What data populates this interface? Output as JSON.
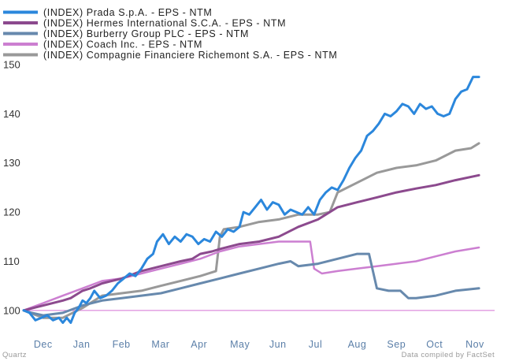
{
  "chart_data": {
    "type": "line",
    "title": "",
    "xlabel": "",
    "ylabel": "",
    "ylim": [
      95,
      150
    ],
    "yticks": [
      100,
      110,
      120,
      130,
      140,
      150
    ],
    "baseline": 100,
    "baseline_color": "#d470d4",
    "xlim": [
      0,
      12
    ],
    "x_tick_labels": [
      "Dec",
      "Jan",
      "Feb",
      "Mar",
      "Apr",
      "May",
      "Jun",
      "Jul",
      "Aug",
      "Sep",
      "Oct",
      "Nov"
    ],
    "legend_position": "top-left",
    "series": [
      {
        "name": "(INDEX) Prada S.p.A. - EPS - NTM",
        "color": "#2b87dc",
        "width": 3,
        "x": [
          0,
          0.15,
          0.3,
          0.45,
          0.6,
          0.75,
          0.9,
          1.0,
          1.1,
          1.2,
          1.3,
          1.4,
          1.5,
          1.6,
          1.7,
          1.8,
          1.95,
          2.1,
          2.25,
          2.4,
          2.55,
          2.7,
          2.85,
          3.0,
          3.15,
          3.3,
          3.4,
          3.55,
          3.7,
          3.85,
          4.0,
          4.15,
          4.3,
          4.45,
          4.6,
          4.75,
          4.9,
          5.05,
          5.2,
          5.35,
          5.5,
          5.6,
          5.75,
          5.9,
          6.05,
          6.2,
          6.35,
          6.5,
          6.65,
          6.8,
          6.95,
          7.1,
          7.25,
          7.4,
          7.55,
          7.7,
          7.85,
          8.0,
          8.15,
          8.3,
          8.45,
          8.6,
          8.75,
          8.9,
          9.05,
          9.2,
          9.35,
          9.5,
          9.65,
          9.8,
          9.95,
          10.1,
          10.25,
          10.4,
          10.55,
          10.7,
          10.85,
          11.0,
          11.15,
          11.3,
          11.45,
          11.6
        ],
        "values": [
          100,
          99.5,
          98,
          98.5,
          99,
          98,
          98.5,
          97.5,
          98.5,
          97.5,
          99.5,
          100.5,
          102,
          101.5,
          102.5,
          104,
          102.5,
          103,
          104,
          105.5,
          106.5,
          107.5,
          107,
          108.5,
          110.5,
          111.5,
          114,
          115.5,
          113.5,
          115,
          114,
          115.5,
          115,
          113.5,
          114.5,
          114,
          116,
          115,
          116.5,
          116,
          117,
          120,
          119.5,
          121,
          122.5,
          120.5,
          122,
          121.5,
          119.5,
          120.5,
          120,
          119.5,
          121,
          119.5,
          122.5,
          124,
          125,
          124.5,
          126.5,
          129,
          131,
          132.5,
          135.5,
          136.5,
          138,
          140,
          139.5,
          140.5,
          142,
          141.5,
          140,
          142,
          141,
          141.5,
          140,
          139.5,
          140,
          143,
          144.5,
          145,
          147.5,
          147.5
        ]
      },
      {
        "name": "(INDEX) Hermes International S.C.A. - EPS - NTM",
        "color": "#8c4a8e",
        "width": 3,
        "x": [
          0,
          0.5,
          1.0,
          1.2,
          1.5,
          1.7,
          2.0,
          2.5,
          3.0,
          3.5,
          4.0,
          4.3,
          4.5,
          4.8,
          5.0,
          5.5,
          6.0,
          6.5,
          7.0,
          7.5,
          7.7,
          8.0,
          8.5,
          9.0,
          9.5,
          10.0,
          10.5,
          11.0,
          11.6
        ],
        "values": [
          100,
          101,
          102,
          102.5,
          104,
          104.5,
          105.5,
          106.5,
          108,
          109,
          110,
          110.5,
          111.5,
          112,
          112.5,
          113.5,
          114,
          115,
          117,
          118.5,
          119.5,
          121,
          122,
          123,
          124,
          124.8,
          125.5,
          126.5,
          127.5
        ]
      },
      {
        "name": "(INDEX) Burberry Group PLC - EPS - NTM",
        "color": "#6789ad",
        "width": 3,
        "x": [
          0,
          0.2,
          0.5,
          1.0,
          1.5,
          2.0,
          2.5,
          3.0,
          3.5,
          4.0,
          4.5,
          5.0,
          5.5,
          6.0,
          6.5,
          6.8,
          7.0,
          7.5,
          8.0,
          8.5,
          8.8,
          8.9,
          9.0,
          9.3,
          9.6,
          9.8,
          10.0,
          10.5,
          11.0,
          11.6
        ],
        "values": [
          100,
          99.5,
          99,
          99.5,
          101,
          102,
          102.5,
          103,
          103.5,
          104.5,
          105.5,
          106.5,
          107.5,
          108.5,
          109.5,
          110,
          109,
          109.5,
          110.5,
          111.5,
          111.5,
          108,
          104.5,
          104,
          104,
          102.5,
          102.5,
          103,
          104,
          104.5
        ]
      },
      {
        "name": "(INDEX) Coach Inc. - EPS - NTM",
        "color": "#cc7fd1",
        "width": 2.5,
        "x": [
          0,
          0.5,
          1.0,
          1.5,
          2.0,
          2.5,
          3.0,
          3.5,
          4.0,
          4.5,
          5.0,
          5.5,
          6.0,
          6.5,
          7.0,
          7.3,
          7.4,
          7.6,
          8.0,
          8.5,
          9.0,
          9.5,
          10.0,
          10.5,
          11.0,
          11.6
        ],
        "values": [
          100,
          101.5,
          103,
          104.5,
          106,
          106.5,
          107.5,
          108.5,
          109.5,
          110.5,
          112,
          113,
          113.5,
          114,
          114,
          114,
          108.5,
          107.5,
          108,
          108.5,
          109,
          109.5,
          110,
          111,
          112,
          112.8
        ]
      },
      {
        "name": "(INDEX) Compagnie Financiere Richemont S.A. - EPS - NTM",
        "color": "#999999",
        "width": 3,
        "x": [
          0,
          0.5,
          1.0,
          1.5,
          2.0,
          2.5,
          3.0,
          3.5,
          4.0,
          4.5,
          4.9,
          5.0,
          5.1,
          5.5,
          6.0,
          6.5,
          7.0,
          7.5,
          7.8,
          8.0,
          8.5,
          9.0,
          9.5,
          10.0,
          10.5,
          11.0,
          11.4,
          11.6
        ],
        "values": [
          100,
          98.5,
          98.5,
          100.5,
          103,
          103.5,
          104,
          105,
          106,
          107,
          108,
          115,
          116.5,
          117,
          118,
          118.5,
          119.5,
          119.5,
          120,
          124,
          126,
          128,
          129,
          129.5,
          130.5,
          132.5,
          133,
          134
        ]
      }
    ],
    "source_left": "Quartz",
    "source_right": "Data compiled by FactSet"
  }
}
